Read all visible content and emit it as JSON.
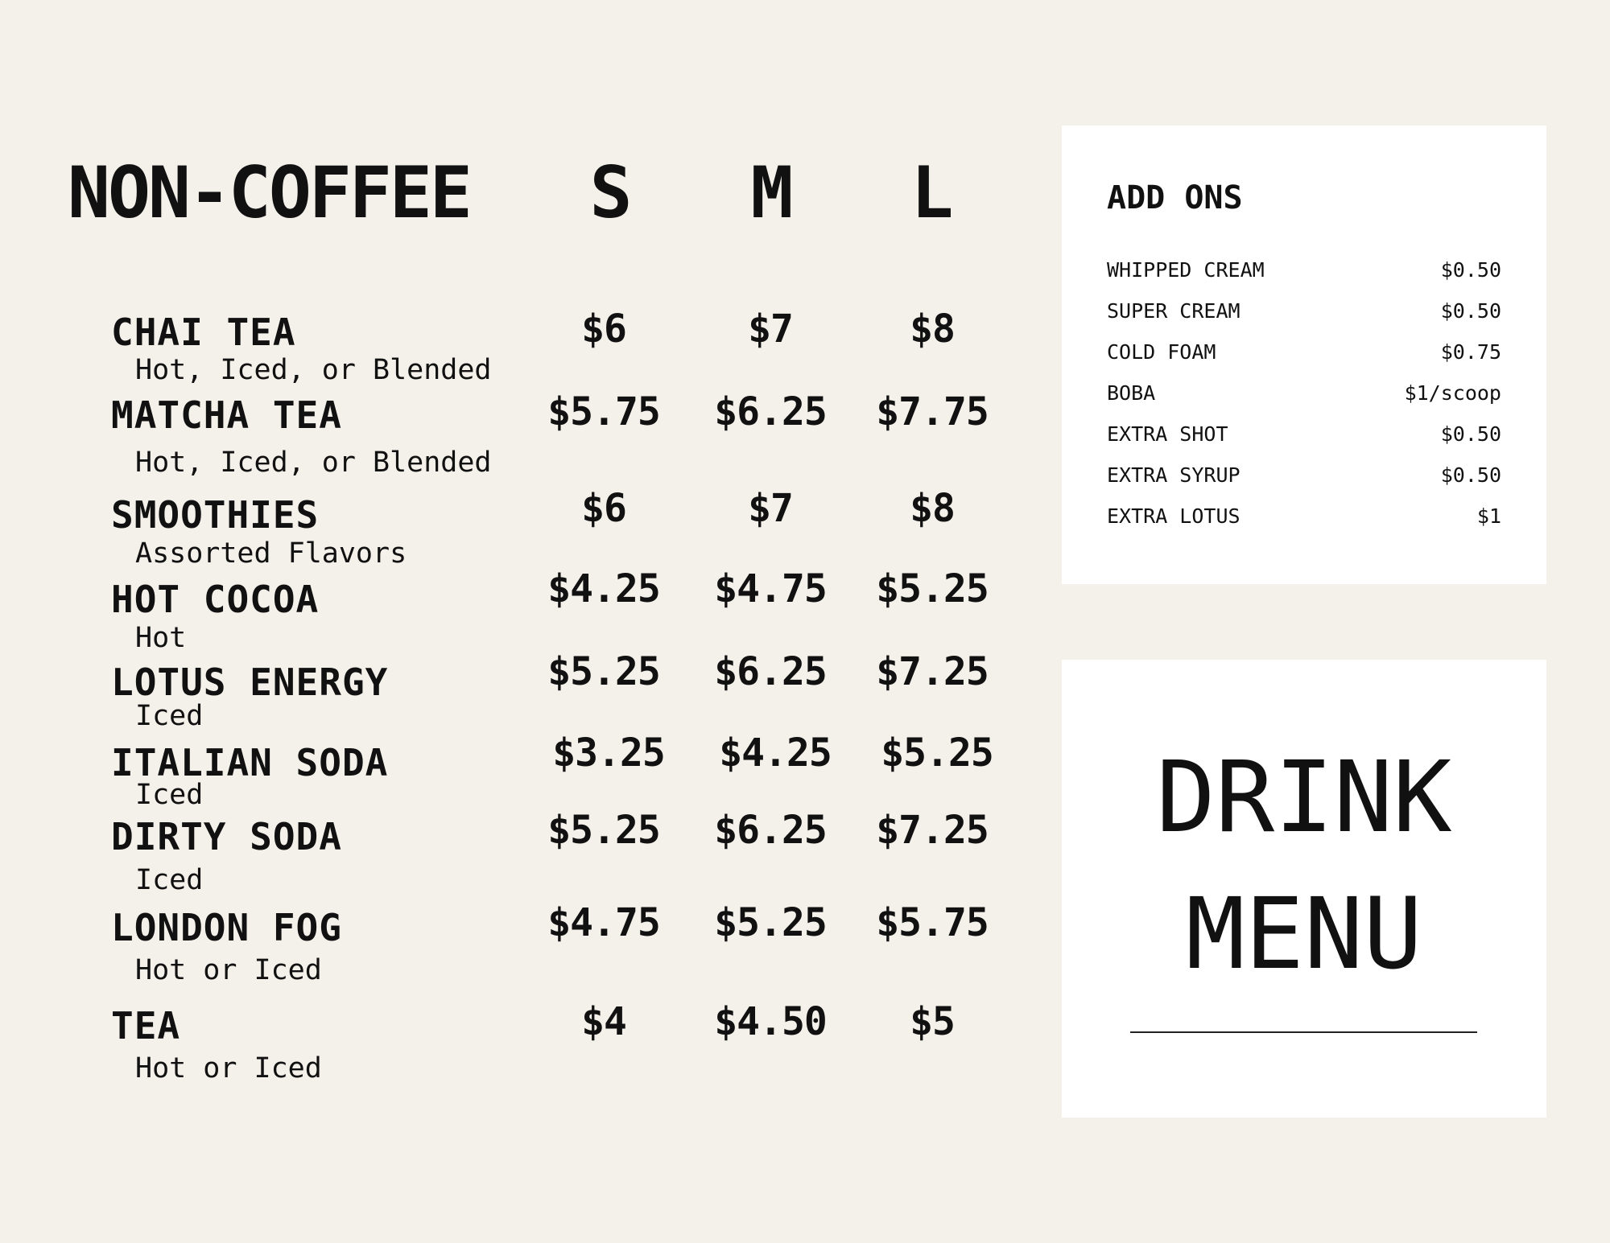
{
  "menu": {
    "title": "NON-COFFEE",
    "sizes": [
      "S",
      "M",
      "L"
    ],
    "items": [
      {
        "name": "CHAI TEA",
        "desc": "Hot, Iced, or Blended",
        "prices": [
          "$6",
          "$7",
          "$8"
        ]
      },
      {
        "name": "MATCHA TEA",
        "desc": "Hot, Iced, or Blended",
        "prices": [
          "$5.75",
          "$6.25",
          "$7.75"
        ]
      },
      {
        "name": "SMOOTHIES",
        "desc": "Assorted Flavors",
        "prices": [
          "$6",
          "$7",
          "$8"
        ]
      },
      {
        "name": "HOT COCOA",
        "desc": "Hot",
        "prices": [
          "$4.25",
          "$4.75",
          "$5.25"
        ]
      },
      {
        "name": "LOTUS ENERGY",
        "desc": "Iced",
        "prices": [
          "$5.25",
          "$6.25",
          "$7.25"
        ]
      },
      {
        "name": "ITALIAN SODA",
        "desc": "Iced",
        "prices": [
          "$3.25",
          "$4.25",
          "$5.25"
        ]
      },
      {
        "name": "DIRTY SODA",
        "desc": "Iced",
        "prices": [
          "$5.25",
          "$6.25",
          "$7.25"
        ]
      },
      {
        "name": "LONDON FOG",
        "desc": "Hot or Iced",
        "prices": [
          "$4.75",
          "$5.25",
          "$5.75"
        ]
      },
      {
        "name": "TEA",
        "desc": "Hot or Iced",
        "prices": [
          "$4",
          "$4.50",
          "$5"
        ]
      }
    ]
  },
  "addons": {
    "title": "ADD ONS",
    "items": [
      {
        "name": "WHIPPED CREAM",
        "price": "$0.50"
      },
      {
        "name": "SUPER CREAM",
        "price": "$0.50"
      },
      {
        "name": "COLD FOAM",
        "price": "$0.75"
      },
      {
        "name": "BOBA",
        "price": "$1/scoop"
      },
      {
        "name": "EXTRA SHOT",
        "price": "$0.50"
      },
      {
        "name": "EXTRA SYRUP",
        "price": "$0.50"
      },
      {
        "name": "EXTRA LOTUS",
        "price": "$1"
      }
    ]
  },
  "banner": {
    "line1": "DRINK",
    "line2": "MENU"
  },
  "colors": {
    "background": "#f4f0ea",
    "panel": "#ffffff",
    "text": "#111111"
  }
}
